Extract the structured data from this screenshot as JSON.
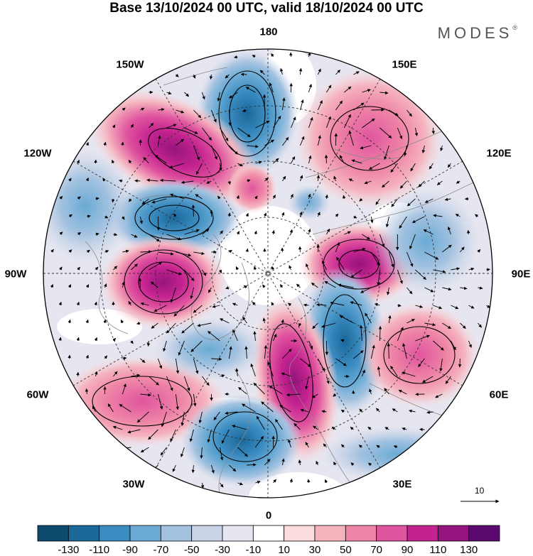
{
  "title": "Base 13/10/2024 00 UTC, valid 18/10/2024 00 UTC",
  "brand": "MODES",
  "brand_mark": "®",
  "longitude_labels": {
    "lon_180": "180",
    "lon_150w": "150W",
    "lon_150e": "150E",
    "lon_120w": "120W",
    "lon_120e": "120E",
    "lon_90w": "90W",
    "lon_90e": "90E",
    "lon_60w": "60W",
    "lon_60e": "60E",
    "lon_30w": "30W",
    "lon_30e": "30E",
    "lon_0": "0"
  },
  "reference_vector": {
    "label": "10"
  },
  "colorbar": {
    "colors": [
      "#0e4a6e",
      "#1a679a",
      "#3a8bc0",
      "#6aaad4",
      "#a3c2e0",
      "#c9d3e8",
      "#e6e6f0",
      "#ffffff",
      "#fbdcdc",
      "#f5b3be",
      "#ee84a6",
      "#e0559f",
      "#c4238f",
      "#96147d",
      "#5a0a6e"
    ],
    "tick_labels": [
      "-130",
      "-110",
      "-90",
      "-70",
      "-50",
      "-30",
      "-10",
      "10",
      "30",
      "50",
      "70",
      "90",
      "110",
      "130"
    ]
  },
  "anomaly_centers": [
    {
      "sign": "negative",
      "value": -90,
      "lon": "160W"
    },
    {
      "sign": "positive",
      "value": 90,
      "lon": "130W"
    },
    {
      "sign": "positive",
      "value": 50,
      "lon": "150E"
    },
    {
      "sign": "negative",
      "value": -90,
      "lon": "105W"
    },
    {
      "sign": "positive",
      "value": 110,
      "lon": "90W"
    },
    {
      "sign": "positive",
      "value": 110,
      "lon": "85E"
    },
    {
      "sign": "negative",
      "value": -70,
      "lon": "45E"
    },
    {
      "sign": "positive",
      "value": 110,
      "lon": "20E"
    },
    {
      "sign": "positive",
      "value": 50,
      "lon": "60E"
    },
    {
      "sign": "positive",
      "value": 50,
      "lon": "50W"
    },
    {
      "sign": "negative",
      "value": -70,
      "lon": "15W"
    },
    {
      "sign": "negative",
      "value": -30,
      "lon": "60W"
    }
  ]
}
